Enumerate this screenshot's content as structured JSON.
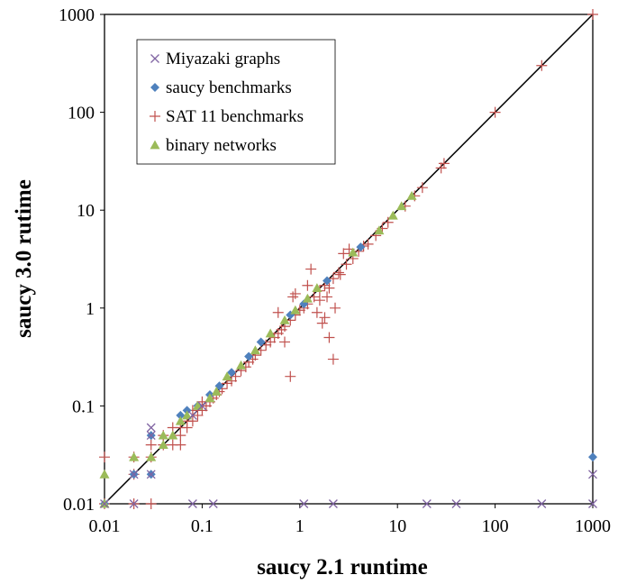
{
  "chart_data": {
    "type": "scatter",
    "xlabel": "saucy 2.1 runtime",
    "ylabel": "saucy 3.0 rutime",
    "xscale": "log",
    "yscale": "log",
    "xlim": [
      0.01,
      1000
    ],
    "ylim": [
      0.01,
      1000
    ],
    "x_ticks": [
      "0.01",
      "0.1",
      "1",
      "10",
      "100",
      "1000"
    ],
    "y_ticks": [
      "0.01",
      "0.1",
      "1",
      "10",
      "100",
      "1000"
    ],
    "reference_line": "y = x",
    "grid": false,
    "legend_position": "top-left",
    "series": [
      {
        "name": "Miyazaki graphs",
        "marker": "x",
        "color": "#8064A2",
        "points": [
          [
            0.01,
            0.01
          ],
          [
            0.02,
            0.01
          ],
          [
            0.08,
            0.01
          ],
          [
            0.13,
            0.01
          ],
          [
            1.1,
            0.01
          ],
          [
            2.2,
            0.01
          ],
          [
            20,
            0.01
          ],
          [
            40,
            0.01
          ],
          [
            300,
            0.01
          ],
          [
            1000,
            0.01
          ],
          [
            1000,
            0.02
          ],
          [
            0.02,
            0.02
          ],
          [
            0.03,
            0.02
          ],
          [
            0.03,
            0.05
          ],
          [
            0.03,
            0.06
          ],
          [
            0.08,
            0.08
          ],
          [
            0.1,
            0.1
          ]
        ]
      },
      {
        "name": "saucy benchmarks",
        "marker": "diamond",
        "color": "#4F81BD",
        "points": [
          [
            0.01,
            0.01
          ],
          [
            0.02,
            0.02
          ],
          [
            0.03,
            0.02
          ],
          [
            0.03,
            0.05
          ],
          [
            0.06,
            0.08
          ],
          [
            0.07,
            0.09
          ],
          [
            0.09,
            0.1
          ],
          [
            0.12,
            0.13
          ],
          [
            0.15,
            0.16
          ],
          [
            0.2,
            0.22
          ],
          [
            0.3,
            0.32
          ],
          [
            0.4,
            0.45
          ],
          [
            0.8,
            0.85
          ],
          [
            1.1,
            1.1
          ],
          [
            1.9,
            1.9
          ],
          [
            4.2,
            4.2
          ],
          [
            1000,
            0.03
          ]
        ]
      },
      {
        "name": "SAT 11 benchmarks",
        "marker": "plus",
        "color": "#C0504D",
        "points": [
          [
            0.01,
            0.01
          ],
          [
            0.01,
            0.03
          ],
          [
            0.02,
            0.01
          ],
          [
            0.03,
            0.01
          ],
          [
            0.02,
            0.02
          ],
          [
            0.02,
            0.03
          ],
          [
            0.03,
            0.03
          ],
          [
            0.03,
            0.04
          ],
          [
            0.04,
            0.04
          ],
          [
            0.04,
            0.05
          ],
          [
            0.05,
            0.04
          ],
          [
            0.05,
            0.06
          ],
          [
            0.06,
            0.04
          ],
          [
            0.06,
            0.05
          ],
          [
            0.06,
            0.06
          ],
          [
            0.07,
            0.06
          ],
          [
            0.07,
            0.07
          ],
          [
            0.08,
            0.07
          ],
          [
            0.08,
            0.09
          ],
          [
            0.09,
            0.08
          ],
          [
            0.1,
            0.09
          ],
          [
            0.1,
            0.11
          ],
          [
            0.11,
            0.1
          ],
          [
            0.12,
            0.11
          ],
          [
            0.13,
            0.12
          ],
          [
            0.14,
            0.13
          ],
          [
            0.15,
            0.14
          ],
          [
            0.16,
            0.15
          ],
          [
            0.18,
            0.17
          ],
          [
            0.2,
            0.18
          ],
          [
            0.22,
            0.2
          ],
          [
            0.25,
            0.23
          ],
          [
            0.28,
            0.25
          ],
          [
            0.3,
            0.28
          ],
          [
            0.33,
            0.3
          ],
          [
            0.35,
            0.33
          ],
          [
            0.4,
            0.37
          ],
          [
            0.45,
            0.42
          ],
          [
            0.5,
            0.45
          ],
          [
            0.55,
            0.5
          ],
          [
            0.6,
            0.55
          ],
          [
            0.65,
            0.6
          ],
          [
            0.7,
            0.65
          ],
          [
            0.8,
            0.75
          ],
          [
            0.9,
            0.85
          ],
          [
            1.0,
            0.95
          ],
          [
            1.1,
            1.0
          ],
          [
            1.2,
            1.1
          ],
          [
            1.4,
            1.3
          ],
          [
            1.6,
            1.5
          ],
          [
            1.8,
            1.7
          ],
          [
            2.0,
            1.6
          ],
          [
            2.2,
            2.0
          ],
          [
            2.5,
            2.3
          ],
          [
            3.0,
            2.8
          ],
          [
            3.5,
            3.2
          ],
          [
            4.0,
            3.8
          ],
          [
            4.5,
            4.3
          ],
          [
            5.0,
            4.5
          ],
          [
            6.0,
            5.5
          ],
          [
            7.0,
            6.5
          ],
          [
            8.0,
            7.5
          ],
          [
            12,
            11
          ],
          [
            15,
            14
          ],
          [
            18,
            17
          ],
          [
            28,
            27
          ],
          [
            30,
            30
          ],
          [
            100,
            100
          ],
          [
            300,
            300
          ],
          [
            1000,
            1000
          ],
          [
            0.8,
            0.2
          ],
          [
            2.2,
            0.3
          ],
          [
            2.0,
            0.5
          ],
          [
            1.5,
            0.9
          ],
          [
            1.8,
            0.8
          ],
          [
            1.7,
            0.7
          ],
          [
            0.85,
            1.3
          ],
          [
            1.2,
            1.7
          ],
          [
            2.3,
            1.0
          ],
          [
            1.3,
            2.5
          ],
          [
            2.6,
            2.2
          ],
          [
            0.7,
            0.45
          ],
          [
            0.9,
            1.4
          ],
          [
            1.6,
            1.2
          ],
          [
            0.6,
            0.9
          ],
          [
            1.9,
            1.3
          ],
          [
            3.2,
            4.0
          ],
          [
            2.8,
            3.6
          ]
        ]
      },
      {
        "name": "binary networks",
        "marker": "triangle",
        "color": "#9BBB59",
        "points": [
          [
            0.01,
            0.01
          ],
          [
            0.01,
            0.02
          ],
          [
            0.02,
            0.03
          ],
          [
            0.03,
            0.03
          ],
          [
            0.04,
            0.04
          ],
          [
            0.04,
            0.05
          ],
          [
            0.05,
            0.05
          ],
          [
            0.06,
            0.07
          ],
          [
            0.07,
            0.08
          ],
          [
            0.09,
            0.1
          ],
          [
            0.12,
            0.12
          ],
          [
            0.14,
            0.14
          ],
          [
            0.18,
            0.2
          ],
          [
            0.25,
            0.26
          ],
          [
            0.35,
            0.37
          ],
          [
            0.5,
            0.55
          ],
          [
            0.7,
            0.75
          ],
          [
            0.9,
            0.95
          ],
          [
            1.2,
            1.25
          ],
          [
            1.5,
            1.6
          ],
          [
            3.5,
            3.7
          ],
          [
            6.5,
            6.2
          ],
          [
            9,
            8.8
          ],
          [
            11,
            11
          ],
          [
            14,
            14
          ]
        ]
      }
    ]
  }
}
